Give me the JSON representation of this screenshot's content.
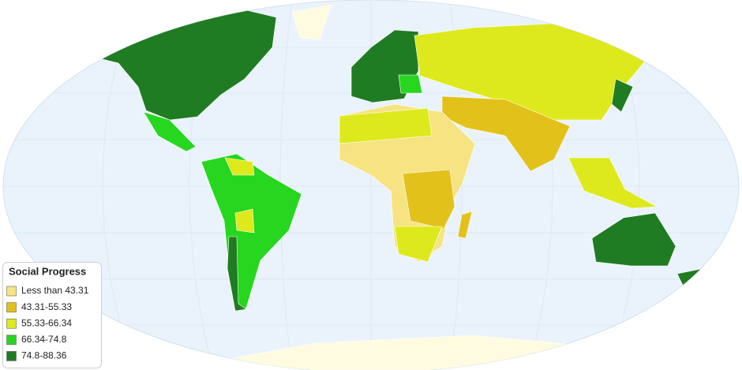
{
  "legend": {
    "title": "Social Progress",
    "items": [
      {
        "label": "Less than 43.31",
        "color": "#f6e382"
      },
      {
        "label": "43.31-55.33",
        "color": "#e3c11b"
      },
      {
        "label": "55.33-66.34",
        "color": "#dde91c"
      },
      {
        "label": "66.34-74.8",
        "color": "#26d61f"
      },
      {
        "label": "74.8-88.36",
        "color": "#207c22"
      }
    ]
  }
}
